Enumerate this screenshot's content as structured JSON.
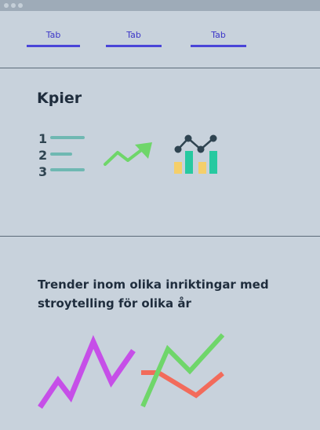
{
  "tabs": [
    {
      "label": "Tab"
    },
    {
      "label": "Tab"
    },
    {
      "label": "Tab"
    }
  ],
  "section_kpi": {
    "heading": "Kpier",
    "icons": [
      "numbered-list-icon",
      "trend-up-arrow-icon",
      "bar-line-chart-icon"
    ],
    "list_numbers": [
      "1",
      "2",
      "3"
    ]
  },
  "section_trends": {
    "heading": "Trender inom olika inriktingar med stroytelling för olika år",
    "icons": [
      "purple-zigzag-line-icon",
      "multi-line-chart-icon"
    ]
  },
  "colors": {
    "background": "#c8d2dc",
    "tab_accent": "#4a45d8",
    "teal": "#6fb8b2",
    "green": "#6fd66a",
    "purple": "#c64fe8",
    "red": "#f26b5b",
    "yellow": "#f5cf6a",
    "turquoise": "#27c9a0",
    "dark": "#2f4451"
  }
}
